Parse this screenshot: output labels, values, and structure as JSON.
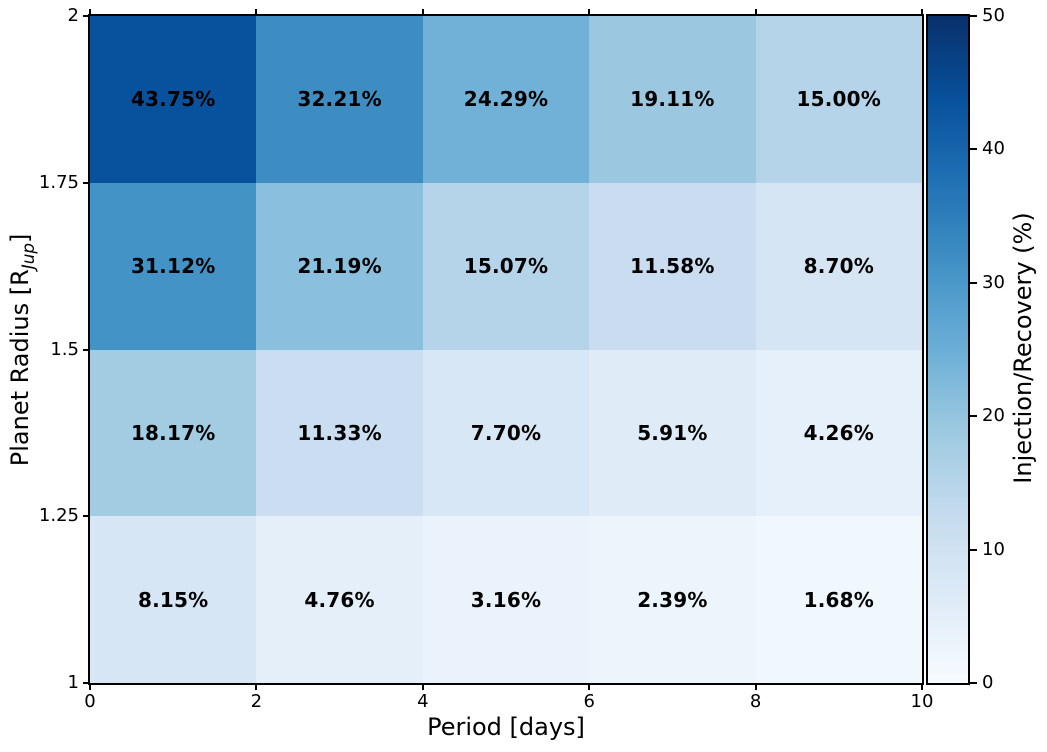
{
  "chart_data": {
    "type": "heatmap",
    "xlabel": "Period [days]",
    "ylabel_prefix": "Planet Radius [R",
    "ylabel_subscript": "Jup",
    "ylabel_suffix": "]",
    "colorbar_label": "Injection/Recovery (%)",
    "colormap": "Blues",
    "color_range": [
      0,
      50
    ],
    "x_range": [
      0,
      10
    ],
    "y_range": [
      1,
      2
    ],
    "x_ticks": [
      0,
      2,
      4,
      6,
      8,
      10
    ],
    "y_ticks": [
      2,
      1.75,
      1.5,
      1.25,
      1
    ],
    "colorbar_ticks": [
      0,
      10,
      20,
      30,
      40,
      50
    ],
    "period_bins": [
      [
        0,
        2
      ],
      [
        2,
        4
      ],
      [
        4,
        6
      ],
      [
        6,
        8
      ],
      [
        8,
        10
      ]
    ],
    "grid_on": false,
    "rows": [
      {
        "radius_bin": [
          1.75,
          2.0
        ],
        "values": [
          43.75,
          32.21,
          24.29,
          19.11,
          15.0
        ],
        "labels": [
          "43.75%",
          "32.21%",
          "24.29%",
          "19.11%",
          "15.00%"
        ],
        "colors": [
          "#08519c",
          "#3d8dc3",
          "#71b1d7",
          "#9bc8e0",
          "#b6d4e9"
        ]
      },
      {
        "radius_bin": [
          1.5,
          1.75
        ],
        "values": [
          31.12,
          21.19,
          15.07,
          11.58,
          8.7
        ],
        "labels": [
          "31.12%",
          "21.19%",
          "15.07%",
          "11.58%",
          "8.70%"
        ],
        "colors": [
          "#4393c6",
          "#8abfdd",
          "#b6d4e9",
          "#cadcf0",
          "#d5e5f4"
        ]
      },
      {
        "radius_bin": [
          1.25,
          1.5
        ],
        "values": [
          18.17,
          11.33,
          7.7,
          5.91,
          4.26
        ],
        "labels": [
          "18.17%",
          "11.33%",
          "7.70%",
          "5.91%",
          "4.26%"
        ],
        "colors": [
          "#a2cce2",
          "#cbdef1",
          "#d8e7f5",
          "#dfecf7",
          "#e6f0fa"
        ]
      },
      {
        "radius_bin": [
          1.0,
          1.25
        ],
        "values": [
          8.15,
          4.76,
          3.16,
          2.39,
          1.68
        ],
        "labels": [
          "8.15%",
          "4.76%",
          "3.16%",
          "2.39%",
          "1.68%"
        ],
        "colors": [
          "#d7e6f5",
          "#e4eff9",
          "#eaf3fb",
          "#edf5fc",
          "#f0f7fd"
        ]
      }
    ],
    "colormap_stops": [
      "#f7fbff",
      "#deebf7",
      "#c6dbef",
      "#9ecae1",
      "#6baed6",
      "#4292c6",
      "#2171b5",
      "#08519c",
      "#08306b"
    ],
    "annotation_text_color": "#000000",
    "spine_color": "#000000"
  }
}
